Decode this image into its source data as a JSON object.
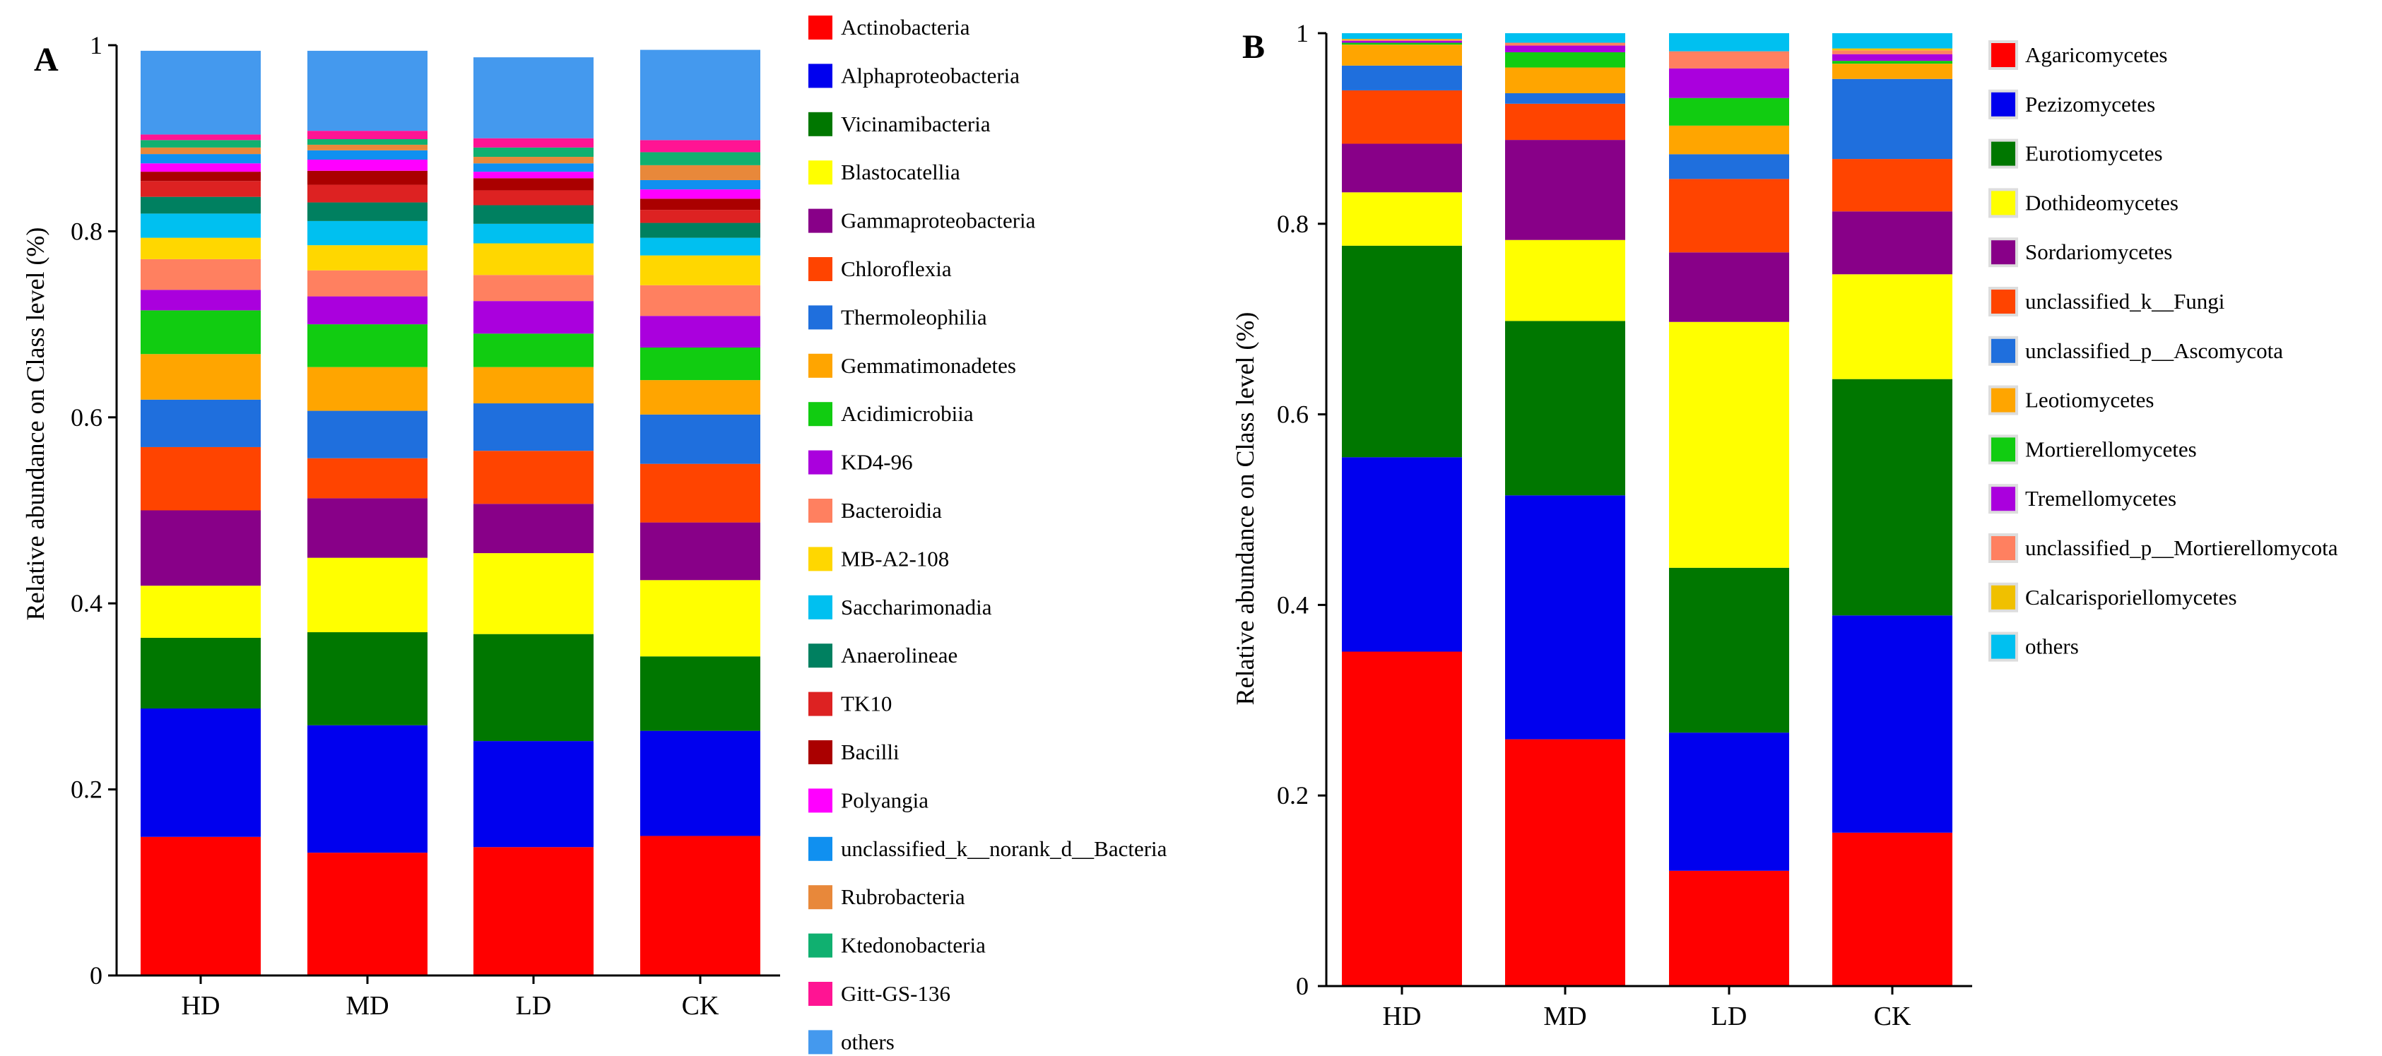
{
  "chart_data": [
    {
      "panel": "A",
      "type": "bar",
      "stacked": true,
      "ylabel": "Relative abundance on Class level (%)",
      "xlabel": "",
      "ylim": [
        0,
        1
      ],
      "yticks": [
        0,
        0.2,
        0.4,
        0.6,
        0.8,
        1
      ],
      "ytick_labels": [
        "0",
        "0.2",
        "0.4",
        "0.6",
        "0.8",
        "1"
      ],
      "categories": [
        "HD",
        "MD",
        "LD",
        "CK"
      ],
      "legend_position": "right",
      "series": [
        {
          "name": "Actinobacteria",
          "color": "#FF0000",
          "values": [
            0.149,
            0.132,
            0.138,
            0.15
          ]
        },
        {
          "name": "Alphaproteobacteria",
          "color": "#0000EE",
          "values": [
            0.138,
            0.137,
            0.114,
            0.113
          ]
        },
        {
          "name": "Vicinamibacteria",
          "color": "#007700",
          "values": [
            0.076,
            0.1,
            0.115,
            0.08
          ]
        },
        {
          "name": "Blastocatellia",
          "color": "#FFFF00",
          "values": [
            0.056,
            0.08,
            0.087,
            0.082
          ]
        },
        {
          "name": "Gammaproteobacteria",
          "color": "#880088",
          "values": [
            0.081,
            0.064,
            0.053,
            0.062
          ]
        },
        {
          "name": "Chloroflexia",
          "color": "#FF4400",
          "values": [
            0.068,
            0.043,
            0.057,
            0.063
          ]
        },
        {
          "name": "Thermoleophilia",
          "color": "#1F6FDD",
          "values": [
            0.051,
            0.051,
            0.051,
            0.053
          ]
        },
        {
          "name": "Gemmatimonadetes",
          "color": "#FFA500",
          "values": [
            0.049,
            0.047,
            0.039,
            0.037
          ]
        },
        {
          "name": "Acidimicrobiia",
          "color": "#11CC11",
          "values": [
            0.047,
            0.046,
            0.036,
            0.035
          ]
        },
        {
          "name": "KD4-96",
          "color": "#AA00DD",
          "values": [
            0.022,
            0.03,
            0.035,
            0.034
          ]
        },
        {
          "name": "Bacteroidia",
          "color": "#FF8060",
          "values": [
            0.033,
            0.028,
            0.028,
            0.033
          ]
        },
        {
          "name": "MB-A2-108",
          "color": "#FFD700",
          "values": [
            0.023,
            0.027,
            0.034,
            0.032
          ]
        },
        {
          "name": "Saccharimonadia",
          "color": "#00C0F0",
          "values": [
            0.026,
            0.026,
            0.021,
            0.019
          ]
        },
        {
          "name": "Anaerolineae",
          "color": "#008060",
          "values": [
            0.018,
            0.02,
            0.02,
            0.016
          ]
        },
        {
          "name": "TK10",
          "color": "#DD2222",
          "values": [
            0.017,
            0.019,
            0.016,
            0.014
          ]
        },
        {
          "name": "Bacilli",
          "color": "#AA0000",
          "values": [
            0.01,
            0.015,
            0.013,
            0.012
          ]
        },
        {
          "name": "Polyangia",
          "color": "#FF00FF",
          "values": [
            0.009,
            0.012,
            0.007,
            0.01
          ]
        },
        {
          "name": "unclassified_k__norank_d__Bacteria",
          "color": "#1090F0",
          "values": [
            0.01,
            0.01,
            0.009,
            0.01
          ]
        },
        {
          "name": "Rubrobacteria",
          "color": "#E8883A",
          "values": [
            0.007,
            0.006,
            0.007,
            0.016
          ]
        },
        {
          "name": "Ktedonobacteria",
          "color": "#10B070",
          "values": [
            0.008,
            0.006,
            0.01,
            0.014
          ]
        },
        {
          "name": "Gitt-GS-136",
          "color": "#FF1493",
          "values": [
            0.006,
            0.009,
            0.01,
            0.013
          ]
        },
        {
          "name": "others",
          "color": "#4499EE",
          "values": [
            0.09,
            0.086,
            0.087,
            0.097
          ]
        }
      ]
    },
    {
      "panel": "B",
      "type": "bar",
      "stacked": true,
      "ylabel": "Relative abundance on Class level (%)",
      "xlabel": "",
      "ylim": [
        0,
        1
      ],
      "yticks": [
        0,
        0.2,
        0.4,
        0.6,
        0.8,
        1
      ],
      "ytick_labels": [
        "0",
        "0.2",
        "0.4",
        "0.6",
        "0.8",
        "1"
      ],
      "categories": [
        "HD",
        "MD",
        "LD",
        "CK"
      ],
      "legend_position": "right",
      "series": [
        {
          "name": "Agaricomycetes",
          "color": "#FF0000",
          "values": [
            0.351,
            0.259,
            0.121,
            0.161
          ]
        },
        {
          "name": "Pezizomycetes",
          "color": "#0000EE",
          "values": [
            0.204,
            0.256,
            0.145,
            0.228
          ]
        },
        {
          "name": "Eurotiomycetes",
          "color": "#007700",
          "values": [
            0.222,
            0.183,
            0.173,
            0.248
          ]
        },
        {
          "name": "Dothideomycetes",
          "color": "#FFFF00",
          "values": [
            0.056,
            0.085,
            0.258,
            0.11
          ]
        },
        {
          "name": "Sordariomycetes",
          "color": "#880088",
          "values": [
            0.051,
            0.105,
            0.073,
            0.066
          ]
        },
        {
          "name": "unclassified_k__Fungi",
          "color": "#FF4400",
          "values": [
            0.056,
            0.038,
            0.077,
            0.055
          ]
        },
        {
          "name": "unclassified_p__Ascomycota",
          "color": "#1F6FDD",
          "values": [
            0.026,
            0.011,
            0.026,
            0.084
          ]
        },
        {
          "name": "Leotiomycetes",
          "color": "#FFA500",
          "values": [
            0.022,
            0.027,
            0.03,
            0.016
          ]
        },
        {
          "name": "Mortierellomycetes",
          "color": "#11CC11",
          "values": [
            0.002,
            0.016,
            0.029,
            0.003
          ]
        },
        {
          "name": "Tremellomycetes",
          "color": "#AA00DD",
          "values": [
            0.002,
            0.007,
            0.031,
            0.007
          ]
        },
        {
          "name": "unclassified_p__Mortierellomycota",
          "color": "#FF8060",
          "values": [
            0.001,
            0.003,
            0.018,
            0.004
          ]
        },
        {
          "name": "Calcarisporiellomycetes",
          "color": "#F0C000",
          "values": [
            0.001,
            0.0,
            0.0,
            0.002
          ]
        },
        {
          "name": "others",
          "color": "#00C0F0",
          "values": [
            0.006,
            0.01,
            0.019,
            0.016
          ]
        }
      ]
    }
  ]
}
